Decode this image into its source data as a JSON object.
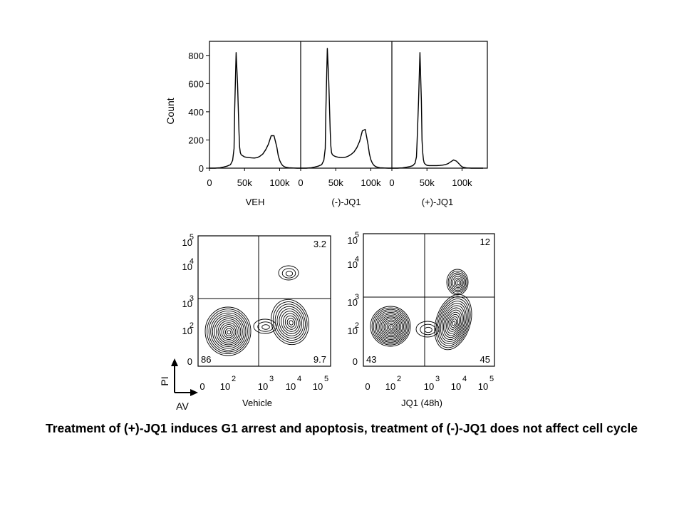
{
  "chart_data": [
    {
      "type": "histogram",
      "ylabel": "Count",
      "ylim": [
        0,
        900
      ],
      "y_ticks": [
        "0",
        "200",
        "400",
        "600",
        "800"
      ],
      "xlim": [
        0,
        130000
      ],
      "x_ticks": [
        "0",
        "50k",
        "100k"
      ],
      "x_tick_values": [
        0,
        50000,
        100000
      ],
      "panels": [
        {
          "label": "VEH",
          "series": {
            "x": [
              0,
              8000,
              15000,
              20000,
              25000,
              30000,
              33000,
              35000,
              36000,
              38000,
              40000,
              42000,
              43000,
              44000,
              45000,
              46000,
              48000,
              50000,
              53000,
              56000,
              60000,
              64000,
              68000,
              72000,
              76000,
              80000,
              84000,
              88000,
              92000,
              96000,
              98000,
              100000,
              102000,
              104000,
              106000,
              108000,
              110000,
              113000,
              116000,
              120000,
              125000,
              130000
            ],
            "y": [
              0,
              0,
              3,
              8,
              14,
              25,
              55,
              140,
              420,
              820,
              600,
              260,
              150,
              110,
              97,
              92,
              86,
              80,
              77,
              75,
              73,
              72,
              75,
              85,
              100,
              130,
              170,
              230,
              230,
              150,
              90,
              55,
              35,
              20,
              12,
              8,
              5,
              3,
              2,
              1,
              0,
              0
            ]
          }
        },
        {
          "label": "(-)-JQ1",
          "series": {
            "x": [
              0,
              8000,
              15000,
              20000,
              25000,
              30000,
              33000,
              35000,
              36000,
              38000,
              40000,
              42000,
              43000,
              44000,
              45000,
              46000,
              48000,
              50000,
              53000,
              56000,
              60000,
              64000,
              68000,
              72000,
              76000,
              80000,
              84000,
              88000,
              92000,
              96000,
              98000,
              100000,
              102000,
              104000,
              106000,
              108000,
              110000,
              113000,
              116000,
              120000,
              125000,
              130000
            ],
            "y": [
              0,
              0,
              3,
              8,
              14,
              25,
              55,
              140,
              420,
              850,
              620,
              270,
              160,
              110,
              98,
              92,
              86,
              82,
              78,
              76,
              75,
              78,
              86,
              98,
              115,
              145,
              190,
              265,
              275,
              170,
              100,
              60,
              38,
              22,
              14,
              9,
              6,
              3,
              2,
              1,
              0,
              0
            ]
          }
        },
        {
          "label": "(+)-JQ1",
          "series": {
            "x": [
              0,
              8000,
              15000,
              20000,
              25000,
              30000,
              33000,
              35000,
              36000,
              38000,
              40000,
              42000,
              43000,
              44000,
              45000,
              46000,
              48000,
              50000,
              53000,
              56000,
              60000,
              64000,
              68000,
              72000,
              76000,
              80000,
              84000,
              88000,
              92000,
              96000,
              98000,
              100000,
              102000,
              104000,
              106000,
              108000,
              110000,
              113000,
              116000,
              120000,
              125000,
              130000
            ],
            "y": [
              0,
              0,
              2,
              6,
              10,
              18,
              35,
              80,
              190,
              470,
              820,
              480,
              200,
              110,
              60,
              38,
              26,
              20,
              18,
              18,
              18,
              18,
              19,
              21,
              25,
              32,
              45,
              58,
              50,
              30,
              18,
              10,
              6,
              4,
              2,
              1,
              1,
              0,
              0,
              0,
              0,
              0
            ]
          }
        }
      ]
    },
    {
      "type": "contour",
      "xlabel": "AV",
      "ylabel": "PI",
      "x_ticks": [
        "0",
        "10",
        "10",
        "10",
        "10"
      ],
      "x_tick_exponents": [
        "",
        "2",
        "3",
        "4",
        "5"
      ],
      "y_ticks": [
        "0",
        "10",
        "10",
        "10",
        "10"
      ],
      "y_tick_exponents": [
        "",
        "2",
        "3",
        "4",
        "5"
      ],
      "panels": [
        {
          "label": "Vehicle",
          "quadrants": {
            "upper_right": "3.2",
            "lower_left": "86",
            "lower_right": "9.7"
          }
        },
        {
          "label": "JQ1 (48h)",
          "quadrants": {
            "upper_right": "12",
            "lower_left": "43",
            "lower_right": "45"
          }
        }
      ]
    }
  ],
  "caption": "Treatment of (+)-JQ1 induces G1 arrest and apoptosis, treatment of (-)-JQ1 does not affect cell cycle"
}
